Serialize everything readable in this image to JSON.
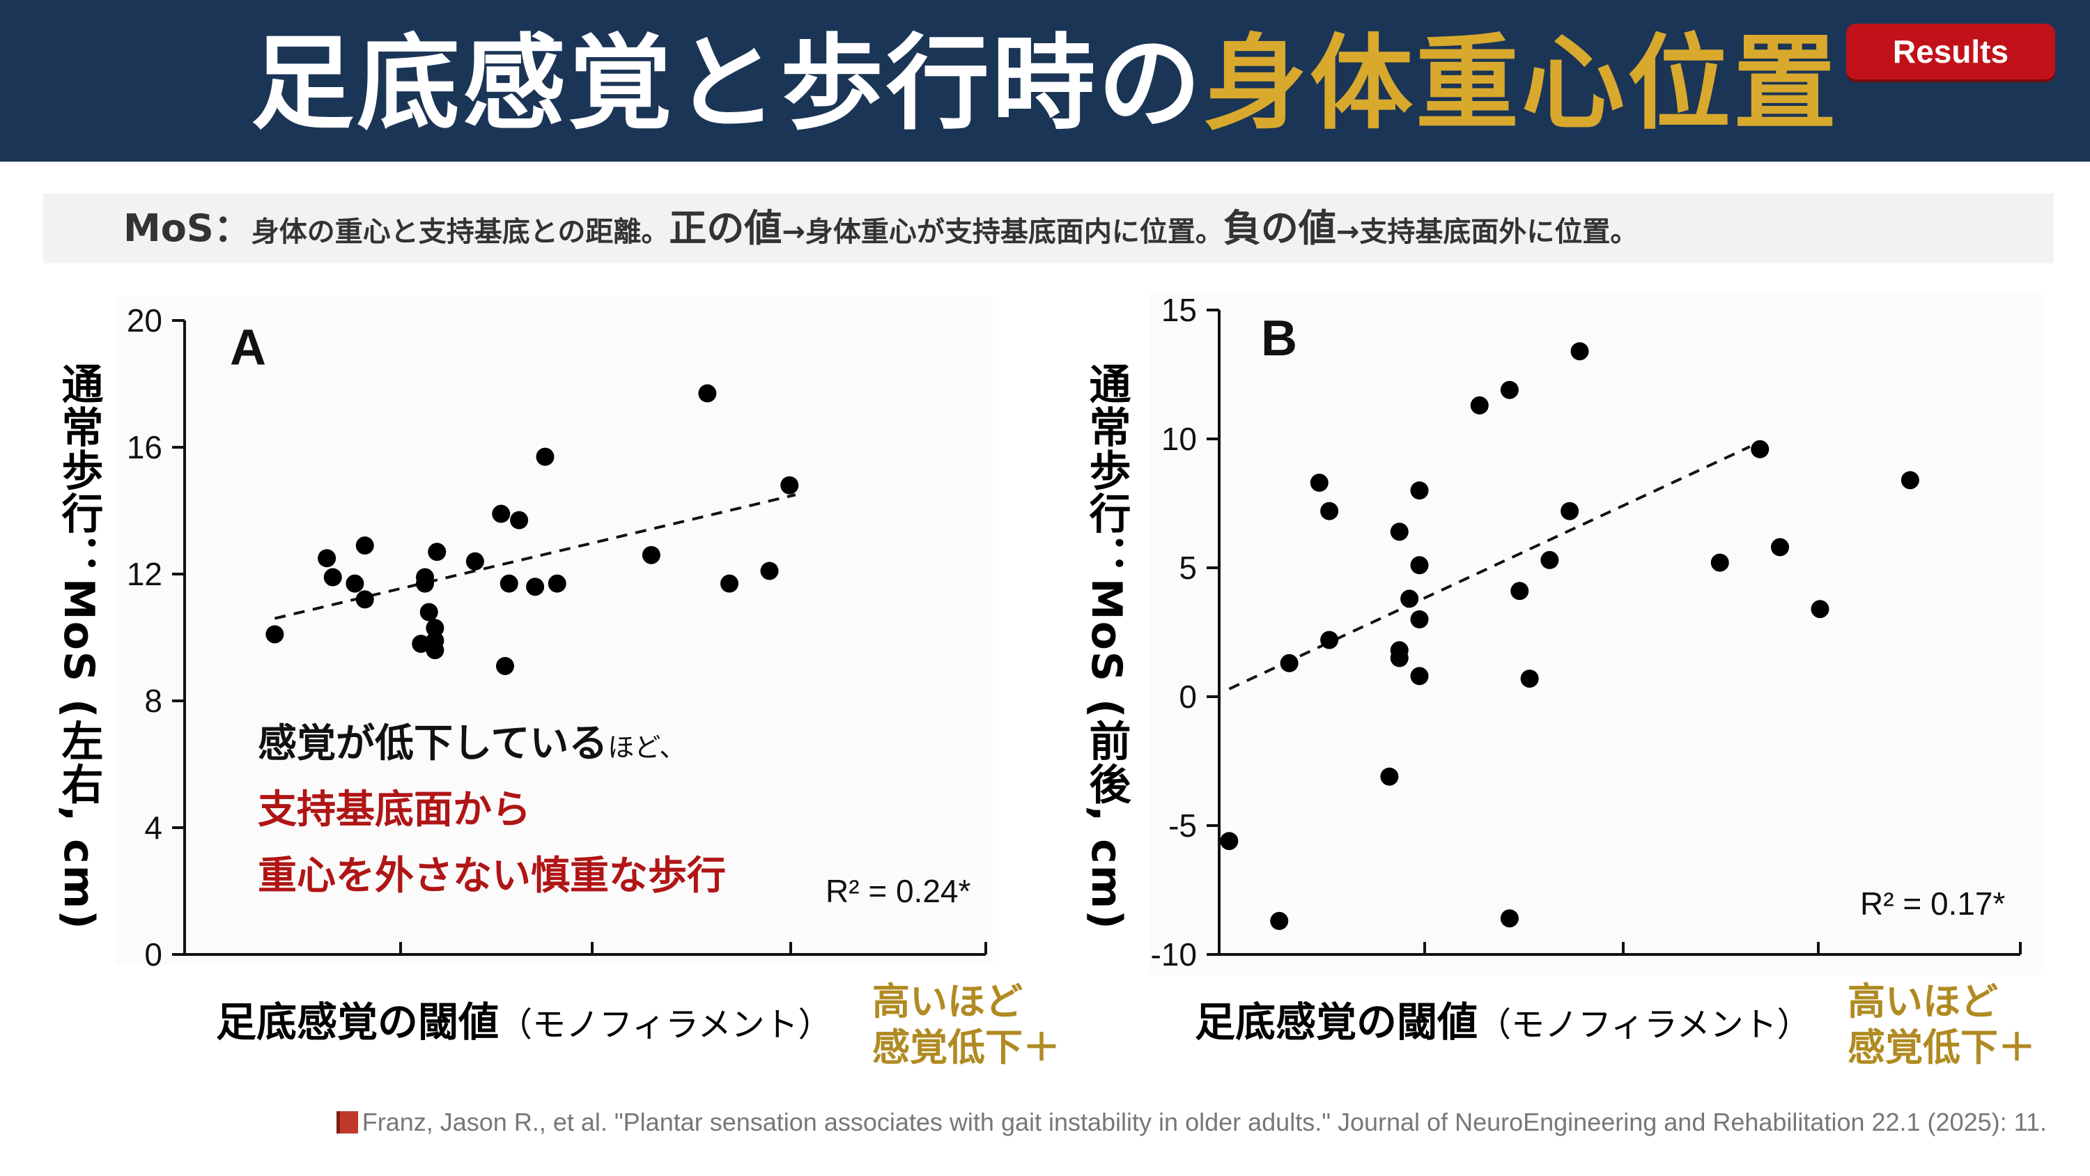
{
  "header": {
    "title_main": "足底感覚と歩行時の",
    "title_accent": "身体重心位置",
    "badge": "Results"
  },
  "definition": {
    "lead": "MoS：",
    "t1": "身体の重心と支持基底との距離。",
    "t2": "正の値",
    "t3": "→身体重心が支持基底面内に位置。",
    "t4": "負の値",
    "t5": "→支持基底面外に位置。"
  },
  "annotation": {
    "line1": "感覚が低下している",
    "line1_small": "ほど、",
    "line2": "支持基底面から",
    "line3": "重心を外さない慎重な歩行"
  },
  "axes_text": {
    "x_label": "足底感覚の閾値",
    "x_label_sub": "（モノフィラメント）",
    "x_note_1": "高いほど",
    "x_note_2": "感覚低下＋",
    "y_label_A": "通常歩行：MoS (左右, cm)",
    "y_label_B": "通常歩行：MoS (前後, cm)"
  },
  "citation": "Franz, Jason R., et al. \"Plantar sensation associates with gait instability in older adults.\" Journal of NeuroEngineering and Rehabilitation 22.1 (2025): 11.",
  "colors": {
    "header_bg": "#1b3556",
    "accent_gold": "#d9a92e",
    "badge_red": "#c1121a",
    "annotation_red": "#b01515",
    "note_gold": "#b08a22"
  },
  "chart_data": [
    {
      "type": "scatter",
      "panel": "A",
      "ylim": [
        0,
        20
      ],
      "yticks": [
        0,
        4,
        8,
        12,
        16,
        20
      ],
      "xlim": [
        0,
        4
      ],
      "r2_label": "R² = 0.24*",
      "trendline": [
        [
          0.45,
          10.6
        ],
        [
          3.05,
          14.5
        ]
      ],
      "points": [
        [
          0.45,
          10.1
        ],
        [
          0.71,
          12.5
        ],
        [
          0.74,
          11.9
        ],
        [
          0.85,
          11.7
        ],
        [
          0.9,
          12.9
        ],
        [
          0.9,
          11.2
        ],
        [
          1.18,
          9.8
        ],
        [
          1.2,
          11.9
        ],
        [
          1.2,
          11.7
        ],
        [
          1.22,
          10.8
        ],
        [
          1.25,
          10.3
        ],
        [
          1.25,
          9.9
        ],
        [
          1.25,
          9.6
        ],
        [
          1.26,
          12.7
        ],
        [
          1.45,
          12.4
        ],
        [
          1.58,
          13.9
        ],
        [
          1.6,
          9.1
        ],
        [
          1.62,
          11.7
        ],
        [
          1.67,
          13.7
        ],
        [
          1.75,
          11.6
        ],
        [
          1.8,
          15.7
        ],
        [
          1.86,
          11.7
        ],
        [
          2.33,
          12.6
        ],
        [
          2.61,
          17.7
        ],
        [
          2.72,
          11.7
        ],
        [
          2.92,
          12.1
        ],
        [
          3.02,
          14.8
        ]
      ]
    },
    {
      "type": "scatter",
      "panel": "B",
      "ylim": [
        -10,
        15
      ],
      "yticks": [
        -10,
        -5,
        0,
        5,
        10,
        15
      ],
      "xlim": [
        0,
        4
      ],
      "r2_label": "R² = 0.17*",
      "trendline": [
        [
          0.05,
          0.3
        ],
        [
          2.65,
          9.7
        ]
      ],
      "points": [
        [
          0.05,
          -5.6
        ],
        [
          0.3,
          -8.7
        ],
        [
          0.35,
          1.3
        ],
        [
          0.5,
          8.3
        ],
        [
          0.55,
          2.2
        ],
        [
          0.55,
          7.2
        ],
        [
          0.85,
          -3.1
        ],
        [
          0.9,
          6.4
        ],
        [
          0.9,
          1.8
        ],
        [
          0.9,
          1.5
        ],
        [
          0.95,
          3.8
        ],
        [
          1.0,
          8.0
        ],
        [
          1.0,
          5.1
        ],
        [
          1.0,
          3.0
        ],
        [
          1.0,
          0.8
        ],
        [
          1.3,
          11.3
        ],
        [
          1.45,
          11.9
        ],
        [
          1.45,
          -8.6
        ],
        [
          1.5,
          4.1
        ],
        [
          1.55,
          0.7
        ],
        [
          1.65,
          5.3
        ],
        [
          1.75,
          7.2
        ],
        [
          1.8,
          13.4
        ],
        [
          2.5,
          5.2
        ],
        [
          2.7,
          9.6
        ],
        [
          2.8,
          5.8
        ],
        [
          3.0,
          3.4
        ],
        [
          3.45,
          8.4
        ]
      ]
    }
  ]
}
